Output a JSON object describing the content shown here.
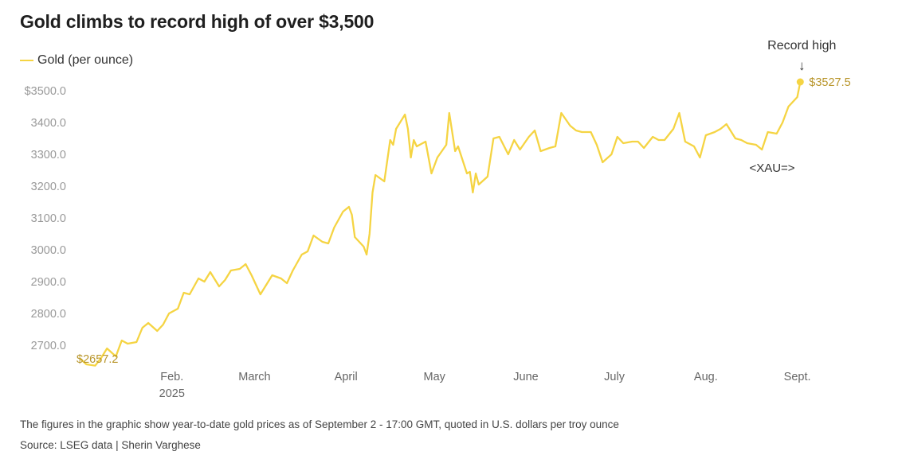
{
  "title": "Gold climbs to record high of over $3,500",
  "legend": {
    "label": "Gold (per ounce)"
  },
  "footnote": "The figures in the graphic show year-to-date gold prices as of September 2 - 17:00 GMT, quoted in U.S. dollars per troy ounce",
  "source": "Source: LSEG data | Sherin Varghese",
  "colors": {
    "line": "#f5d443",
    "value_label": "#b8952a",
    "axis_text": "#999999",
    "annotation": "#333333"
  },
  "chart_data": {
    "type": "line",
    "ylim": [
      2630,
      3560
    ],
    "yticks": [
      2700,
      2800,
      2900,
      3000,
      3100,
      3200,
      3300,
      3400,
      3500
    ],
    "ytick_labels": [
      "2700.0",
      "2800.0",
      "2900.0",
      "3000.0",
      "3100.0",
      "3200.0",
      "3300.0",
      "3400.0",
      "$3500.0"
    ],
    "xlim": [
      "2025-01-01",
      "2025-09-03"
    ],
    "xticks": [
      {
        "date": "2025-02-01",
        "label": "Feb.",
        "sublabel": "2025"
      },
      {
        "date": "2025-03-01",
        "label": "March"
      },
      {
        "date": "2025-04-01",
        "label": "April"
      },
      {
        "date": "2025-05-01",
        "label": "May"
      },
      {
        "date": "2025-06-01",
        "label": "June"
      },
      {
        "date": "2025-07-01",
        "label": "July"
      },
      {
        "date": "2025-08-01",
        "label": "Aug."
      },
      {
        "date": "2025-09-01",
        "label": "Sept."
      }
    ],
    "series": [
      {
        "name": "Gold (per ounce)",
        "dates": [
          "2025-01-01",
          "2025-01-03",
          "2025-01-06",
          "2025-01-08",
          "2025-01-10",
          "2025-01-13",
          "2025-01-15",
          "2025-01-17",
          "2025-01-20",
          "2025-01-22",
          "2025-01-24",
          "2025-01-27",
          "2025-01-29",
          "2025-01-31",
          "2025-02-03",
          "2025-02-05",
          "2025-02-07",
          "2025-02-10",
          "2025-02-12",
          "2025-02-14",
          "2025-02-17",
          "2025-02-19",
          "2025-02-21",
          "2025-02-24",
          "2025-02-26",
          "2025-02-28",
          "2025-03-03",
          "2025-03-05",
          "2025-03-07",
          "2025-03-10",
          "2025-03-12",
          "2025-03-14",
          "2025-03-17",
          "2025-03-19",
          "2025-03-21",
          "2025-03-24",
          "2025-03-26",
          "2025-03-28",
          "2025-03-31",
          "2025-04-02",
          "2025-04-03",
          "2025-04-04",
          "2025-04-07",
          "2025-04-08",
          "2025-04-09",
          "2025-04-10",
          "2025-04-11",
          "2025-04-14",
          "2025-04-16",
          "2025-04-17",
          "2025-04-18",
          "2025-04-21",
          "2025-04-22",
          "2025-04-23",
          "2025-04-24",
          "2025-04-25",
          "2025-04-28",
          "2025-04-30",
          "2025-05-02",
          "2025-05-05",
          "2025-05-06",
          "2025-05-07",
          "2025-05-08",
          "2025-05-09",
          "2025-05-12",
          "2025-05-13",
          "2025-05-14",
          "2025-05-15",
          "2025-05-16",
          "2025-05-19",
          "2025-05-21",
          "2025-05-23",
          "2025-05-26",
          "2025-05-28",
          "2025-05-30",
          "2025-06-02",
          "2025-06-04",
          "2025-06-06",
          "2025-06-09",
          "2025-06-11",
          "2025-06-13",
          "2025-06-16",
          "2025-06-18",
          "2025-06-20",
          "2025-06-23",
          "2025-06-25",
          "2025-06-27",
          "2025-06-30",
          "2025-07-02",
          "2025-07-04",
          "2025-07-07",
          "2025-07-09",
          "2025-07-11",
          "2025-07-14",
          "2025-07-16",
          "2025-07-18",
          "2025-07-21",
          "2025-07-23",
          "2025-07-25",
          "2025-07-28",
          "2025-07-30",
          "2025-08-01",
          "2025-08-04",
          "2025-08-06",
          "2025-08-08",
          "2025-08-11",
          "2025-08-13",
          "2025-08-15",
          "2025-08-18",
          "2025-08-20",
          "2025-08-22",
          "2025-08-25",
          "2025-08-27",
          "2025-08-29",
          "2025-09-01",
          "2025-09-02"
        ],
        "values": [
          2657.2,
          2640,
          2636,
          2660,
          2690,
          2665,
          2715,
          2705,
          2710,
          2755,
          2770,
          2745,
          2765,
          2800,
          2815,
          2865,
          2860,
          2910,
          2900,
          2930,
          2885,
          2905,
          2935,
          2940,
          2955,
          2920,
          2860,
          2890,
          2920,
          2910,
          2895,
          2935,
          2985,
          2995,
          3045,
          3025,
          3020,
          3070,
          3120,
          3135,
          3110,
          3040,
          3010,
          2985,
          3050,
          3180,
          3235,
          3215,
          3345,
          3330,
          3380,
          3425,
          3380,
          3290,
          3345,
          3325,
          3340,
          3240,
          3290,
          3330,
          3430,
          3370,
          3310,
          3325,
          3240,
          3245,
          3180,
          3240,
          3205,
          3230,
          3350,
          3355,
          3300,
          3345,
          3315,
          3355,
          3375,
          3310,
          3320,
          3325,
          3430,
          3390,
          3375,
          3370,
          3370,
          3330,
          3275,
          3300,
          3355,
          3335,
          3340,
          3340,
          3320,
          3355,
          3345,
          3345,
          3380,
          3430,
          3340,
          3325,
          3290,
          3360,
          3370,
          3380,
          3395,
          3350,
          3345,
          3335,
          3330,
          3315,
          3370,
          3365,
          3400,
          3450,
          3480,
          3527.5
        ]
      }
    ],
    "start_label": "$2657.2",
    "end_label": "$3527.5",
    "annotations": {
      "record": "Record high",
      "arrow": "↓",
      "ticker": "<XAU=>"
    }
  }
}
